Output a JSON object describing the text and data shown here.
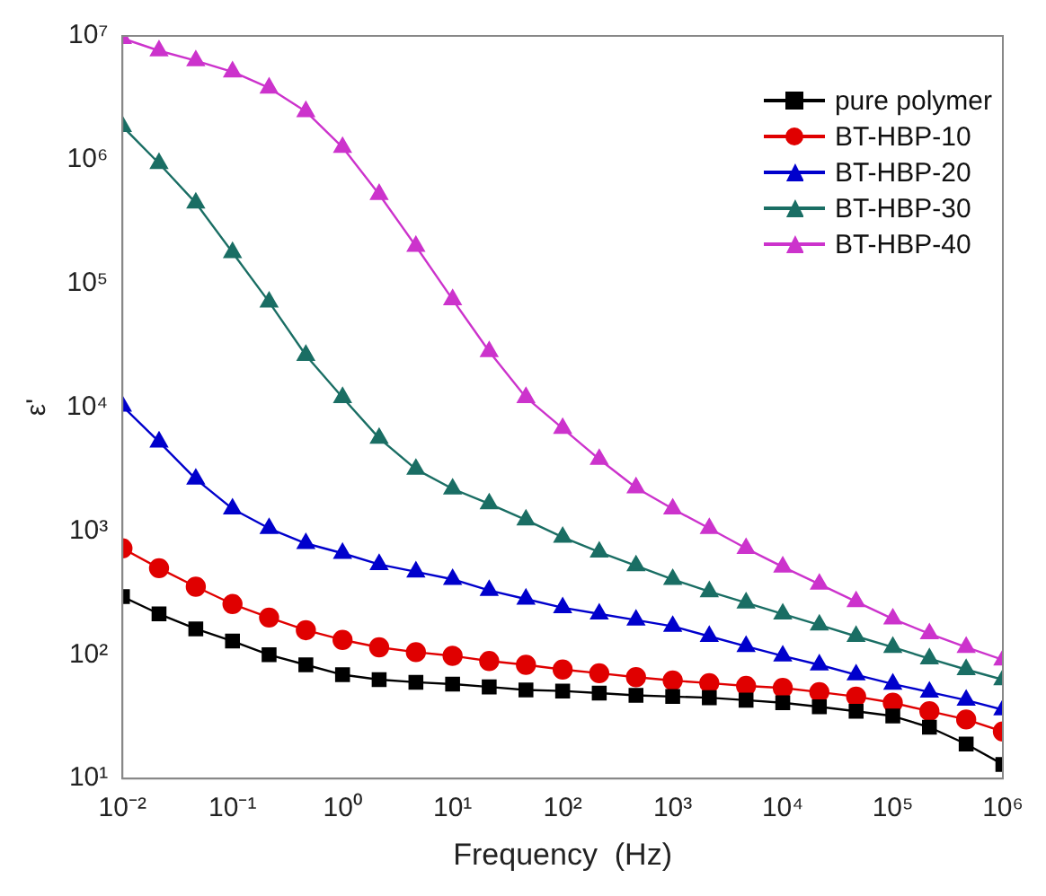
{
  "chart_data": {
    "type": "line",
    "xlabel": "Frequency  (Hz)",
    "ylabel": "ε'",
    "log": "xy",
    "legend": "top right",
    "grid": false,
    "x": [
      0.01,
      0.0215,
      0.0464,
      0.1,
      0.215,
      0.464,
      1,
      2.15,
      4.64,
      10,
      21.5,
      46.4,
      100,
      215,
      464,
      1000,
      2150,
      4640,
      10000,
      21500,
      46400,
      100000,
      215000,
      464000,
      1000000
    ],
    "xlim": [
      0.01,
      1000000
    ],
    "ylim": [
      10,
      10000000
    ],
    "xticks": [
      {
        "value": 0.01,
        "label": "10⁻²"
      },
      {
        "value": 0.1,
        "label": "10⁻¹"
      },
      {
        "value": 1,
        "label": "10⁰"
      },
      {
        "value": 10,
        "label": "10¹"
      },
      {
        "value": 100,
        "label": "10²"
      },
      {
        "value": 1000,
        "label": "10³"
      },
      {
        "value": 10000,
        "label": "10⁴"
      },
      {
        "value": 100000,
        "label": "10⁵"
      },
      {
        "value": 1000000,
        "label": "10⁶"
      }
    ],
    "yticks": [
      {
        "value": 10,
        "label": "10¹"
      },
      {
        "value": 100,
        "label": "10²"
      },
      {
        "value": 1000,
        "label": "10³"
      },
      {
        "value": 10000,
        "label": "10⁴"
      },
      {
        "value": 100000,
        "label": "10⁵"
      },
      {
        "value": 1000000,
        "label": "10⁶"
      },
      {
        "value": 10000000,
        "label": "10⁷"
      }
    ],
    "series": [
      {
        "name": "pure polymer",
        "color": "#000000",
        "marker": "square",
        "values": [
          295,
          214,
          162,
          129,
          100,
          83,
          69,
          63,
          60,
          58,
          55,
          52,
          51,
          49,
          47,
          46,
          45,
          43,
          41,
          38,
          35,
          32,
          26,
          19,
          13
        ]
      },
      {
        "name": "BT-HBP-10",
        "color": "#e00000",
        "marker": "circle",
        "values": [
          724,
          501,
          355,
          257,
          200,
          158,
          132,
          115,
          105,
          98,
          89,
          83,
          76,
          71,
          66,
          62,
          59,
          56,
          54,
          50,
          46,
          41,
          35,
          30,
          24
        ]
      },
      {
        "name": "BT-HBP-20",
        "color": "#0000cc",
        "marker": "triangle",
        "values": [
          10200,
          5250,
          2630,
          1510,
          1050,
          794,
          661,
          537,
          468,
          407,
          331,
          282,
          240,
          214,
          191,
          170,
          141,
          117,
          98,
          83,
          69,
          58,
          50,
          43,
          36
        ]
      },
      {
        "name": "BT-HBP-30",
        "color": "#1a6e64",
        "marker": "triangle",
        "values": [
          1860000,
          933000,
          447000,
          178000,
          70800,
          26300,
          12000,
          5620,
          3160,
          2190,
          1660,
          1230,
          891,
          676,
          525,
          407,
          324,
          263,
          214,
          174,
          141,
          115,
          93,
          76,
          63
        ]
      },
      {
        "name": "BT-HBP-40",
        "color": "#cc33cc",
        "marker": "triangle",
        "values": [
          9550000,
          7590000,
          6310000,
          5130000,
          3800000,
          2450000,
          1260000,
          525000,
          200000,
          74100,
          28200,
          12000,
          6760,
          3800,
          2240,
          1510,
          1050,
          724,
          513,
          372,
          269,
          195,
          148,
          115,
          91
        ]
      }
    ]
  }
}
